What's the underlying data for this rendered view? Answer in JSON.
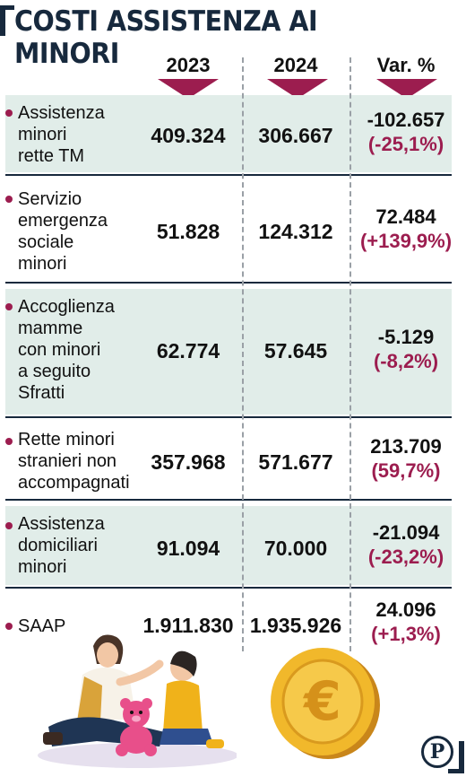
{
  "title": "COSTI ASSISTENZA AI MINORI",
  "colors": {
    "accent": "#9c1d4f",
    "navy": "#17293d",
    "shade": "#e1ede9"
  },
  "chart_data": {
    "type": "table",
    "title": "COSTI ASSISTENZA AI MINORI",
    "columns": [
      "2023",
      "2024",
      "Var. %"
    ],
    "rows": [
      {
        "label": "Assistenza minori rette TM",
        "label_lines": [
          "Assistenza",
          "minori",
          "rette TM"
        ],
        "y2023": "409.324",
        "y2024": "306.667",
        "var_abs": "-102.657",
        "var_pct": "(-25,1%)"
      },
      {
        "label": "Servizio emergenza sociale minori",
        "label_lines": [
          "Servizio",
          "emergenza",
          "sociale",
          "minori"
        ],
        "y2023": "51.828",
        "y2024": "124.312",
        "var_abs": "72.484",
        "var_pct": "(+139,9%)"
      },
      {
        "label": "Accoglienza mamme con minori a seguito Sfratti",
        "label_lines": [
          "Accoglienza",
          "mamme",
          "con minori",
          "a seguito",
          "Sfratti"
        ],
        "y2023": "62.774",
        "y2024": "57.645",
        "var_abs": "-5.129",
        "var_pct": "(-8,2%)"
      },
      {
        "label": "Rette minori stranieri non accompagnati",
        "label_lines": [
          "Rette minori",
          "stranieri non",
          "accompagnati"
        ],
        "y2023": "357.968",
        "y2024": "571.677",
        "var_abs": "213.709",
        "var_pct": "(59,7%)"
      },
      {
        "label": "Assistenza domiciliari minori",
        "label_lines": [
          "Assistenza",
          "domiciliari",
          "minori"
        ],
        "y2023": "91.094",
        "y2024": "70.000",
        "var_abs": "-21.094",
        "var_pct": "(-23,2%)"
      },
      {
        "label": "SAAP",
        "label_lines": [
          "SAAP"
        ],
        "y2023": "1.911.830",
        "y2024": "1.935.926",
        "var_abs": "24.096",
        "var_pct": "(+1,3%)"
      }
    ]
  },
  "icons": [
    "mother-child-teddy-illustration",
    "euro-coin-icon",
    "publisher-logo-icon"
  ],
  "logo": {
    "letter": "P"
  },
  "coin": {
    "symbol": "€"
  }
}
